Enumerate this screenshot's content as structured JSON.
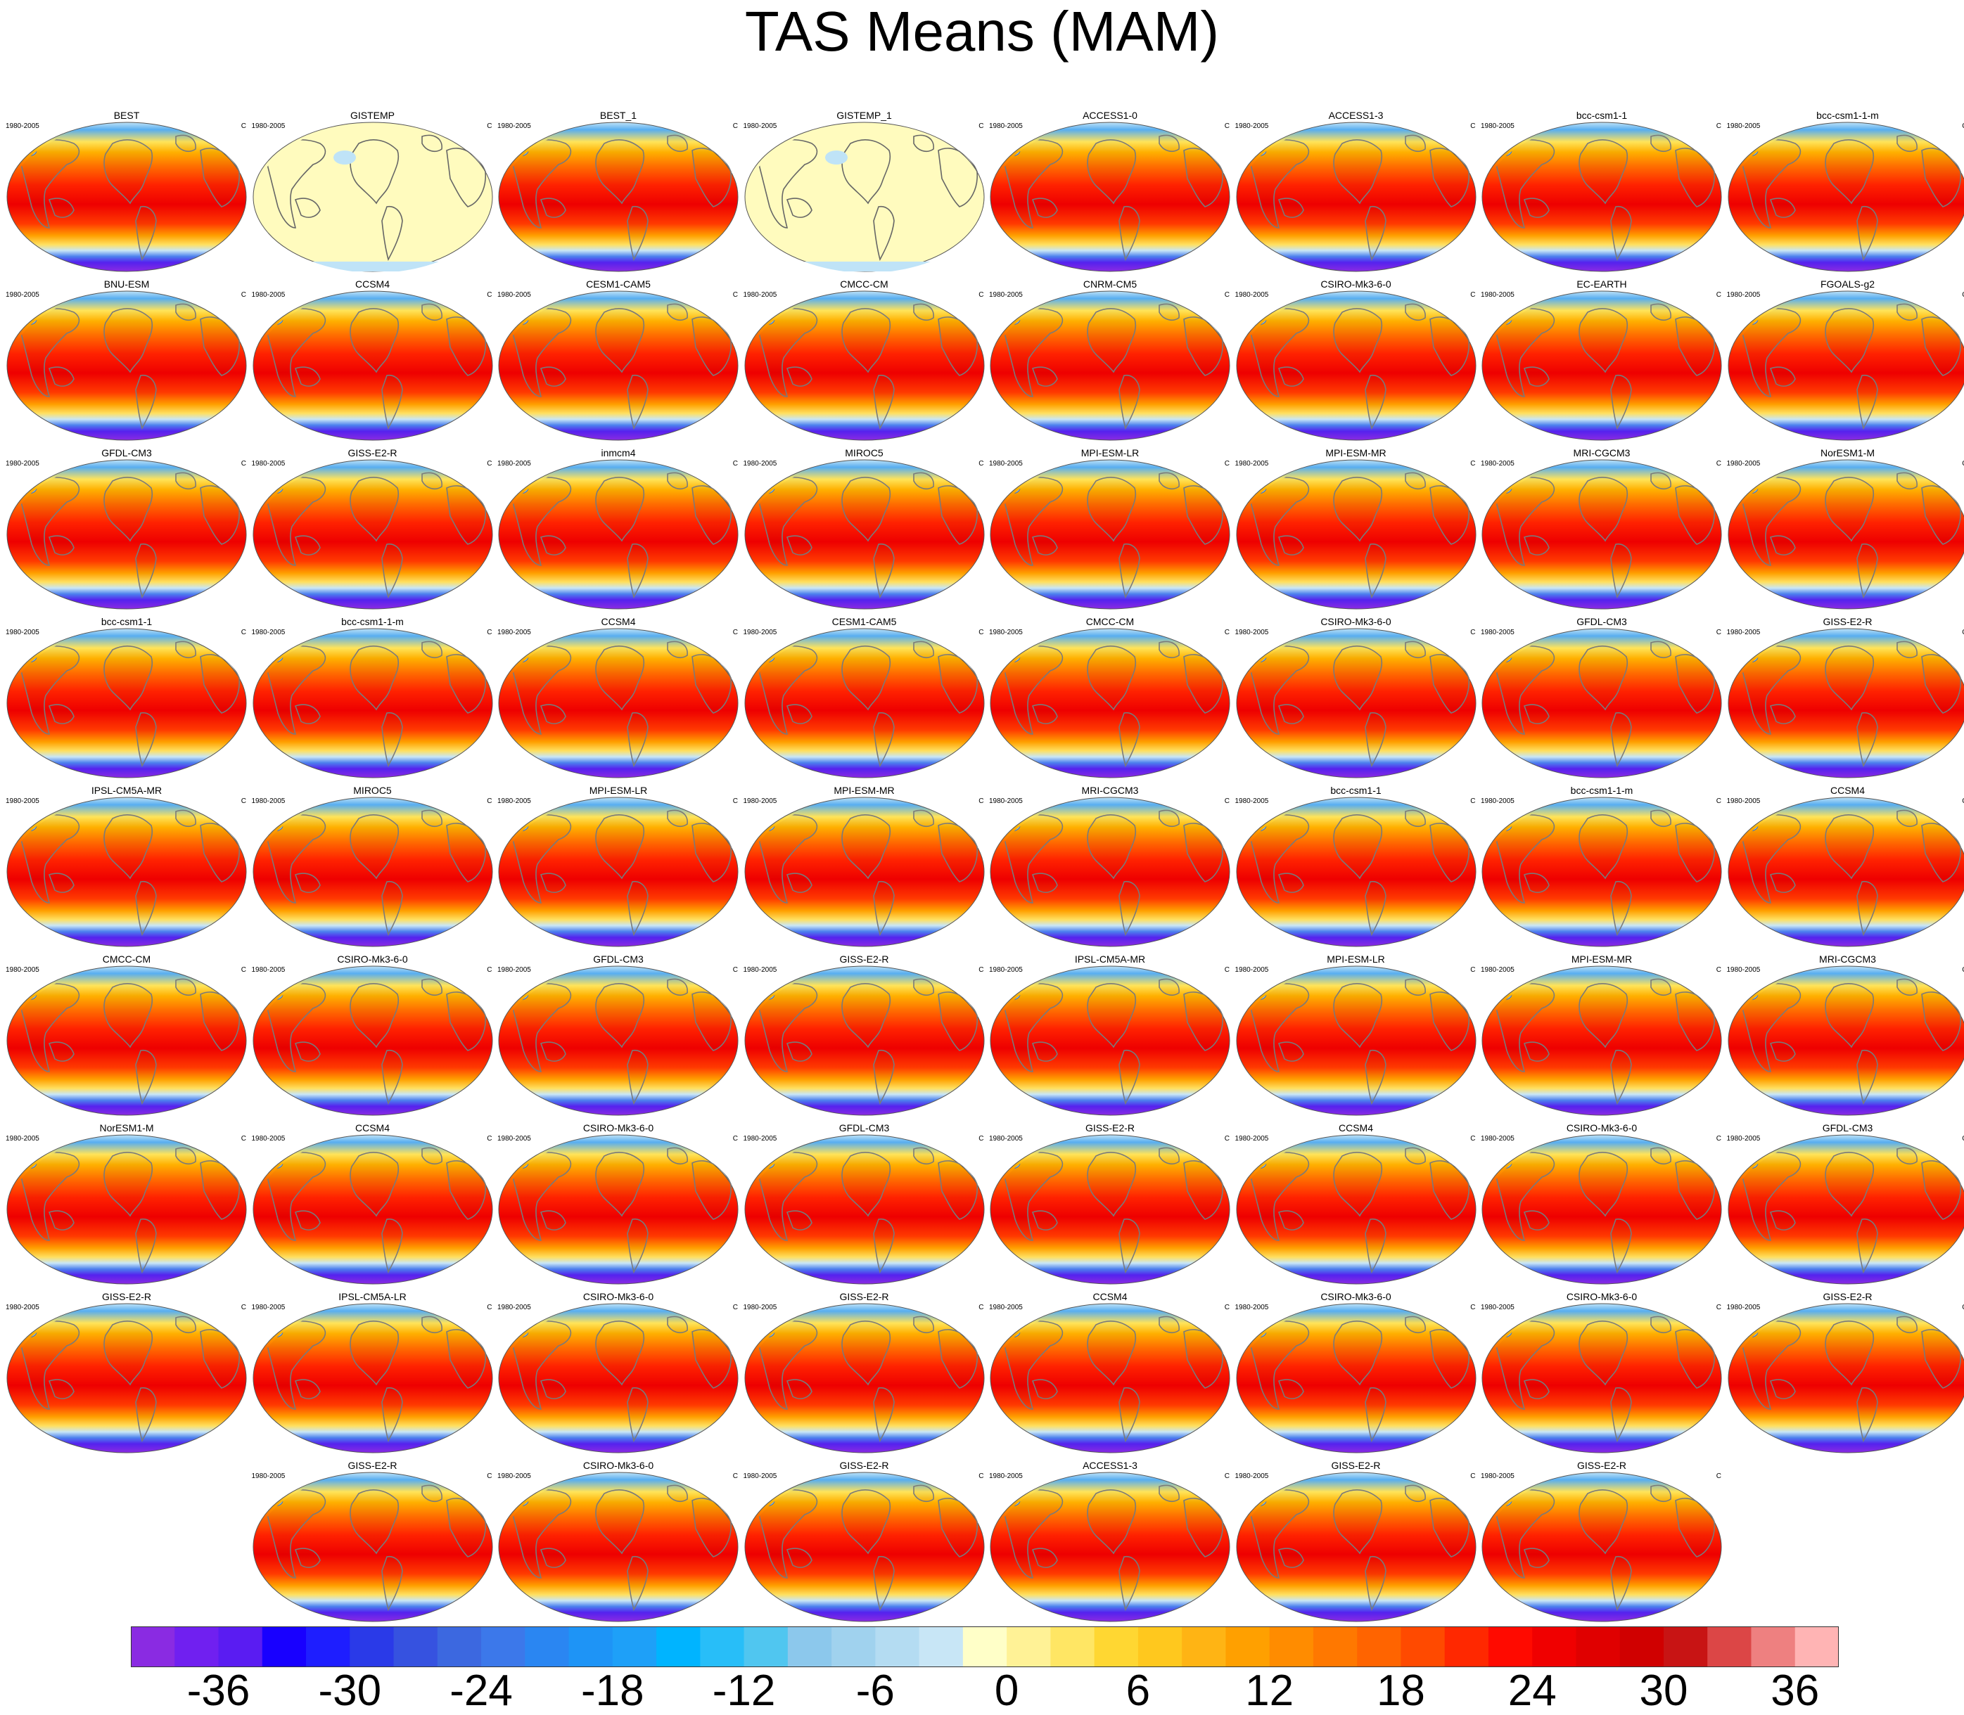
{
  "title": "TAS Means (MAM)",
  "panel_period": "1980-2005",
  "panel_unit": "C",
  "rows": [
    [
      "BEST",
      "GISTEMP",
      "BEST_1",
      "GISTEMP_1",
      "ACCESS1-0",
      "ACCESS1-3",
      "bcc-csm1-1",
      "bcc-csm1-1-m"
    ],
    [
      "BNU-ESM",
      "CCSM4",
      "CESM1-CAM5",
      "CMCC-CM",
      "CNRM-CM5",
      "CSIRO-Mk3-6-0",
      "EC-EARTH",
      "FGOALS-g2"
    ],
    [
      "GFDL-CM3",
      "GISS-E2-R",
      "inmcm4",
      "MIROC5",
      "MPI-ESM-LR",
      "MPI-ESM-MR",
      "MRI-CGCM3",
      "NorESM1-M"
    ],
    [
      "bcc-csm1-1",
      "bcc-csm1-1-m",
      "CCSM4",
      "CESM1-CAM5",
      "CMCC-CM",
      "CSIRO-Mk3-6-0",
      "GFDL-CM3",
      "GISS-E2-R"
    ],
    [
      "IPSL-CM5A-MR",
      "MIROC5",
      "MPI-ESM-LR",
      "MPI-ESM-MR",
      "MRI-CGCM3",
      "bcc-csm1-1",
      "bcc-csm1-1-m",
      "CCSM4"
    ],
    [
      "CMCC-CM",
      "CSIRO-Mk3-6-0",
      "GFDL-CM3",
      "GISS-E2-R",
      "IPSL-CM5A-MR",
      "MPI-ESM-LR",
      "MPI-ESM-MR",
      "MRI-CGCM3"
    ],
    [
      "NorESM1-M",
      "CCSM4",
      "CSIRO-Mk3-6-0",
      "GFDL-CM3",
      "GISS-E2-R",
      "CCSM4",
      "CSIRO-Mk3-6-0",
      "GFDL-CM3"
    ],
    [
      "GISS-E2-R",
      "IPSL-CM5A-LR",
      "CSIRO-Mk3-6-0",
      "GISS-E2-R",
      "CCSM4",
      "CSIRO-Mk3-6-0",
      "CSIRO-Mk3-6-0",
      "GISS-E2-R"
    ],
    [
      "GISS-E2-R",
      "CSIRO-Mk3-6-0",
      "GISS-E2-R",
      "ACCESS1-3",
      "GISS-E2-R",
      "GISS-E2-R"
    ]
  ],
  "empty_panels": [
    "GISTEMP",
    "GISTEMP_1"
  ],
  "colorbar": {
    "colors": [
      "#8a2be2",
      "#7020f0",
      "#5a1cf2",
      "#1800ff",
      "#1e1eff",
      "#2a3ae8",
      "#3652e0",
      "#3c68e0",
      "#3c78ea",
      "#2a86f2",
      "#1e94f6",
      "#1ea0f8",
      "#00b4ff",
      "#28bef8",
      "#50c6f0",
      "#8cc8ec",
      "#a0d2ee",
      "#b4dcf2",
      "#c8e6f6",
      "#ffffc8",
      "#fff296",
      "#ffe664",
      "#ffd732",
      "#ffc81e",
      "#ffb414",
      "#ffa000",
      "#ff8c00",
      "#ff7800",
      "#ff6400",
      "#ff4a00",
      "#ff2800",
      "#ff0a00",
      "#f00000",
      "#e00000",
      "#d00000",
      "#c81414",
      "#dc4646",
      "#ee8080",
      "#ffb4b4"
    ],
    "tick_labels": [
      "-36",
      "-30",
      "-24",
      "-18",
      "-12",
      "-6",
      "0",
      "6",
      "12",
      "18",
      "24",
      "30",
      "36"
    ]
  }
}
